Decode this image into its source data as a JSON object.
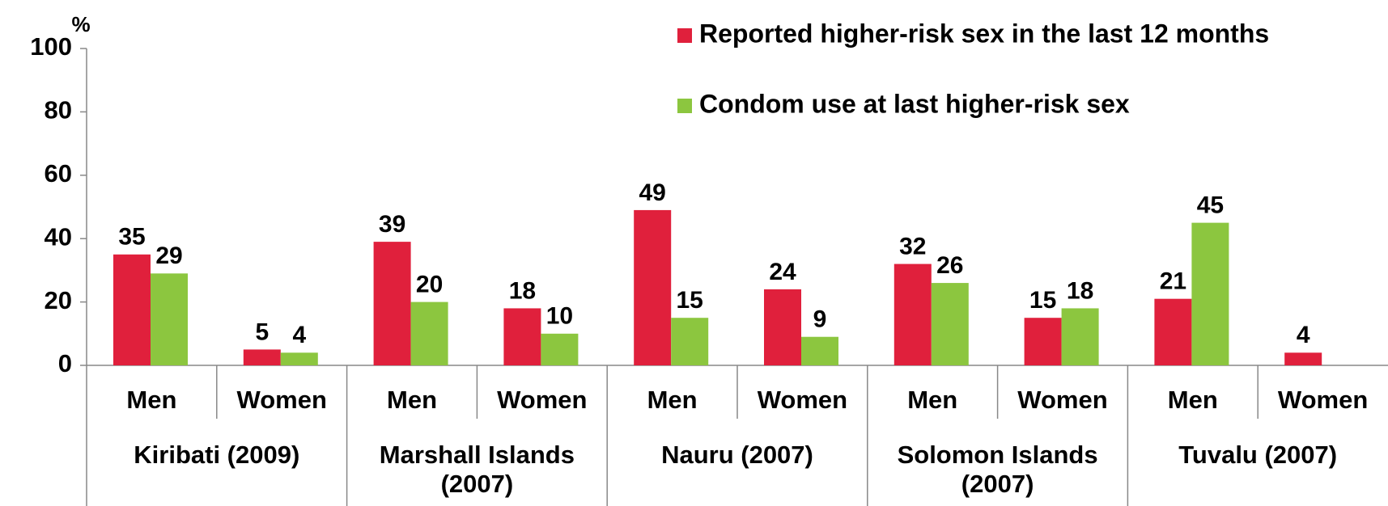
{
  "chart_data": {
    "type": "bar",
    "y_label": "%",
    "categories": [
      "Men",
      "Women",
      "Men",
      "Women",
      "Men",
      "Women",
      "Men",
      "Women",
      "Men",
      "Women"
    ],
    "groups": [
      "Kiribati (2009)",
      "Marshall Islands (2007)",
      "Nauru (2007)",
      "Solomon Islands (2007)",
      "Tuvalu (2007)"
    ],
    "series": [
      {
        "name": "Reported higher-risk sex in the last 12 months",
        "color": "#e0203c",
        "values": [
          35,
          5,
          39,
          18,
          49,
          24,
          32,
          15,
          21,
          4
        ]
      },
      {
        "name": "Condom use at last higher-risk sex",
        "color": "#8cc63f",
        "values": [
          29,
          4,
          20,
          10,
          15,
          9,
          26,
          18,
          45,
          null
        ]
      }
    ],
    "ylim": [
      0,
      100
    ],
    "yticks": [
      0,
      20,
      40,
      60,
      80,
      100
    ],
    "grid": false
  }
}
